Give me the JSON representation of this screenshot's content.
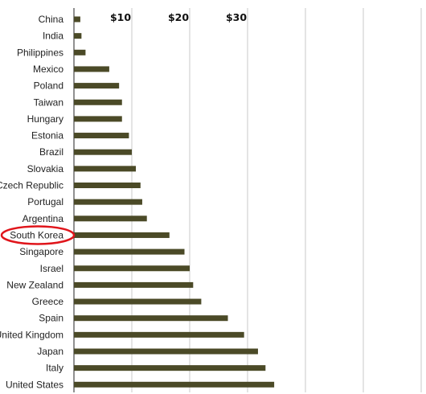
{
  "chart_data": {
    "type": "bar",
    "orientation": "horizontal",
    "categories": [
      "China",
      "India",
      "Philippines",
      "Mexico",
      "Poland",
      "Taiwan",
      "Hungary",
      "Estonia",
      "Brazil",
      "Slovakia",
      "Czech Republic",
      "Portugal",
      "Argentina",
      "South Korea",
      "Singapore",
      "Israel",
      "New Zealand",
      "Greece",
      "Spain",
      "United Kingdom",
      "Japan",
      "Italy",
      "United States"
    ],
    "values": [
      1.1,
      1.3,
      2.0,
      6.1,
      7.8,
      8.3,
      8.3,
      9.5,
      10.0,
      10.7,
      11.5,
      11.8,
      12.6,
      16.5,
      19.1,
      20.0,
      20.6,
      22.0,
      26.6,
      29.4,
      31.8,
      33.1,
      34.6
    ],
    "x_tick_labels": [
      "$10",
      "$20",
      "$30"
    ],
    "xlim": [
      0,
      60
    ],
    "grid": true,
    "bar_color": "#4b4a27",
    "highlight": {
      "category": "South Korea",
      "style": "red ellipse",
      "color": "#e0151b"
    }
  }
}
